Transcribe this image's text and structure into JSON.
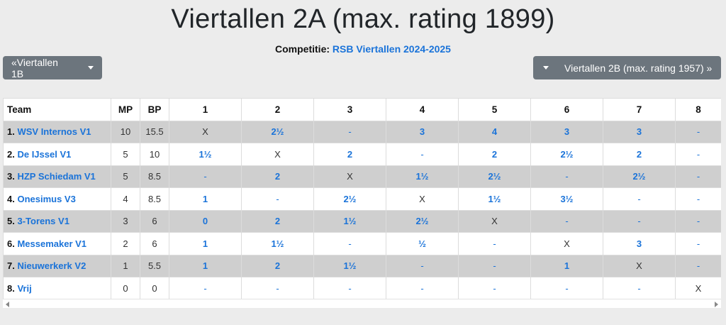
{
  "title": "Viertallen 2A (max. rating 1899)",
  "competition": {
    "label": "Competitie:",
    "link": "RSB Viertallen 2024-2025"
  },
  "nav": {
    "prev": "«Viertallen 1B",
    "next": "Viertallen 2B (max. rating 1957) »"
  },
  "table": {
    "headers": [
      "Team",
      "MP",
      "BP",
      "1",
      "2",
      "3",
      "4",
      "5",
      "6",
      "7",
      "8"
    ],
    "rows": [
      {
        "rank": "1.",
        "team": "WSV Internos V1",
        "mp": "10",
        "bp": "15.5",
        "results": [
          "X",
          "2½",
          "-",
          "3",
          "4",
          "3",
          "3",
          "-"
        ]
      },
      {
        "rank": "2.",
        "team": "De IJssel V1",
        "mp": "5",
        "bp": "10",
        "results": [
          "1½",
          "X",
          "2",
          "-",
          "2",
          "2½",
          "2",
          "-"
        ]
      },
      {
        "rank": "3.",
        "team": "HZP Schiedam V1",
        "mp": "5",
        "bp": "8.5",
        "results": [
          "-",
          "2",
          "X",
          "1½",
          "2½",
          "-",
          "2½",
          "-"
        ]
      },
      {
        "rank": "4.",
        "team": "Onesimus V3",
        "mp": "4",
        "bp": "8.5",
        "results": [
          "1",
          "-",
          "2½",
          "X",
          "1½",
          "3½",
          "-",
          "-"
        ]
      },
      {
        "rank": "5.",
        "team": "3-Torens V1",
        "mp": "3",
        "bp": "6",
        "results": [
          "0",
          "2",
          "1½",
          "2½",
          "X",
          "-",
          "-",
          "-"
        ]
      },
      {
        "rank": "6.",
        "team": "Messemaker V1",
        "mp": "2",
        "bp": "6",
        "results": [
          "1",
          "1½",
          "-",
          "½",
          "-",
          "X",
          "3",
          "-"
        ]
      },
      {
        "rank": "7.",
        "team": "Nieuwerkerk V2",
        "mp": "1",
        "bp": "5.5",
        "results": [
          "1",
          "2",
          "1½",
          "-",
          "-",
          "1",
          "X",
          "-"
        ]
      },
      {
        "rank": "8.",
        "team": "Vrij",
        "mp": "0",
        "bp": "0",
        "results": [
          "-",
          "-",
          "-",
          "-",
          "-",
          "-",
          "-",
          "X"
        ]
      }
    ]
  },
  "colors": {
    "link": "#1a73d9",
    "button": "#6c757d",
    "stripe": "#cfcfcf",
    "background": "#ececec"
  },
  "icons": {
    "nav_caret": "caret-down-icon",
    "scroll_left": "scroll-left-arrow-icon",
    "scroll_right": "scroll-right-arrow-icon"
  }
}
